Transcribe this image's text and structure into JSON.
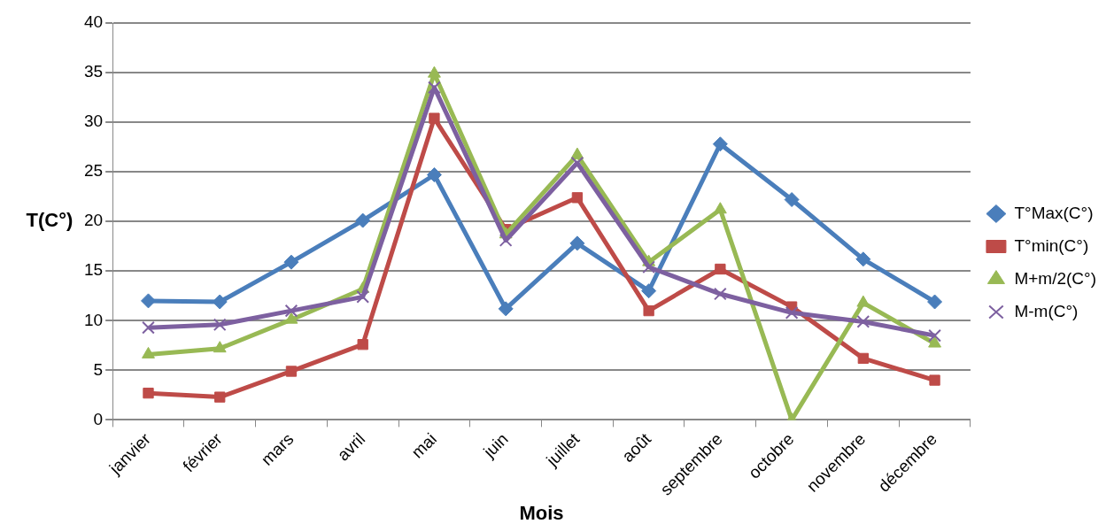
{
  "chart_data": {
    "type": "line",
    "xlabel": "Mois",
    "ylabel": "T(C°)",
    "categories": [
      "janvier",
      "février",
      "mars",
      "avril",
      "mai",
      "juin",
      "juillet",
      "août",
      "septembre",
      "octobre",
      "novembre",
      "décembre"
    ],
    "series": [
      {
        "name": "T°Max(C°)",
        "color": "#4a7ebb",
        "marker": "diamond",
        "values": [
          12.0,
          11.9,
          15.9,
          20.1,
          24.7,
          11.2,
          17.8,
          13.0,
          27.8,
          22.2,
          16.2,
          11.9
        ]
      },
      {
        "name": "T°min(C°)",
        "color": "#be4b48",
        "marker": "square",
        "values": [
          2.7,
          2.3,
          4.9,
          7.6,
          30.4,
          19.2,
          22.4,
          11.0,
          15.2,
          11.4,
          6.2,
          4.0
        ]
      },
      {
        "name": "M+m/2(C°)",
        "color": "#98b954",
        "marker": "triangle",
        "values": [
          6.6,
          7.2,
          10.1,
          13.2,
          34.9,
          18.7,
          26.7,
          15.9,
          21.2,
          0,
          11.8,
          7.7
        ]
      },
      {
        "name": "M-m(C°)",
        "color": "#7d60a0",
        "marker": "cross",
        "values": [
          9.3,
          9.6,
          11.0,
          12.4,
          33.5,
          18.1,
          25.9,
          15.4,
          12.7,
          10.8,
          9.9,
          8.5
        ]
      }
    ],
    "ylim": [
      0,
      40
    ],
    "yticks": [
      0,
      5,
      10,
      15,
      20,
      25,
      30,
      35,
      40
    ],
    "grid": "y",
    "legend": "right",
    "line_style": "solid"
  }
}
